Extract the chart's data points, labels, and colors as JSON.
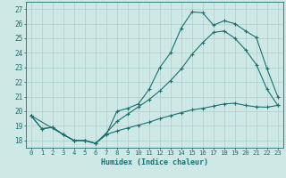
{
  "xlabel": "Humidex (Indice chaleur)",
  "xlim": [
    -0.5,
    23.5
  ],
  "ylim": [
    17.5,
    27.5
  ],
  "xticks": [
    0,
    1,
    2,
    3,
    4,
    5,
    6,
    7,
    8,
    9,
    10,
    11,
    12,
    13,
    14,
    15,
    16,
    17,
    18,
    19,
    20,
    21,
    22,
    23
  ],
  "yticks": [
    18,
    19,
    20,
    21,
    22,
    23,
    24,
    25,
    26,
    27
  ],
  "bg_color": "#cde8e5",
  "line_color": "#1a7070",
  "grid_color": "#aed4d0",
  "line1_x": [
    0,
    1,
    2,
    3,
    4,
    5,
    6,
    7,
    8,
    9,
    10,
    11,
    12,
    13,
    14,
    15,
    16,
    17,
    18,
    19,
    20,
    21,
    22,
    23
  ],
  "line1_y": [
    19.7,
    18.8,
    18.9,
    18.4,
    18.0,
    18.0,
    17.8,
    18.4,
    20.0,
    20.2,
    20.5,
    21.5,
    23.0,
    24.0,
    25.7,
    26.8,
    26.75,
    25.9,
    26.2,
    26.0,
    25.5,
    25.05,
    22.9,
    21.0
  ],
  "line2_x": [
    0,
    3,
    4,
    5,
    6,
    7,
    8,
    9,
    10,
    11,
    12,
    13,
    14,
    15,
    16,
    17,
    18,
    19,
    20,
    21,
    22,
    23
  ],
  "line2_y": [
    19.7,
    18.4,
    18.0,
    18.0,
    17.8,
    18.5,
    19.3,
    19.8,
    20.3,
    20.8,
    21.4,
    22.1,
    22.9,
    23.9,
    24.7,
    25.4,
    25.5,
    25.0,
    24.2,
    23.2,
    21.5,
    20.4
  ],
  "line3_x": [
    0,
    1,
    2,
    3,
    4,
    5,
    6,
    7,
    8,
    9,
    10,
    11,
    12,
    13,
    14,
    15,
    16,
    17,
    18,
    19,
    20,
    21,
    22,
    23
  ],
  "line3_y": [
    19.7,
    18.8,
    18.9,
    18.4,
    18.0,
    18.0,
    17.8,
    18.4,
    18.65,
    18.85,
    19.05,
    19.25,
    19.5,
    19.7,
    19.9,
    20.1,
    20.2,
    20.35,
    20.5,
    20.55,
    20.4,
    20.3,
    20.28,
    20.4
  ]
}
